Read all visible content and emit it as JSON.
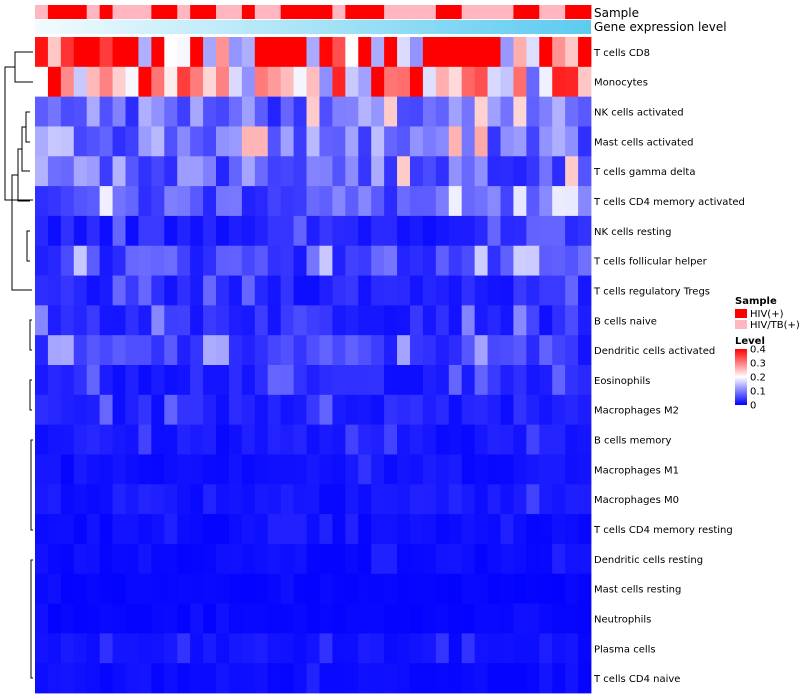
{
  "chart_data": {
    "type": "heatmap",
    "annotation_labels": {
      "sample": "Sample",
      "expression": "Gene expression level"
    },
    "n_columns": 43,
    "rows": [
      "T cells CD8",
      "Monocytes",
      "NK cells activated",
      "Mast cells activated",
      "T cells gamma delta",
      "T cells CD4 memory activated",
      "NK cells resting",
      "T cells follicular helper",
      "T cells regulatory  Tregs",
      "B cells naive",
      "Dendritic cells activated",
      "Eosinophils",
      "Macrophages M2",
      "B cells memory",
      "Macrophages M1",
      "Macrophages M0",
      "T cells CD4 memory resting",
      "Dendritic cells resting",
      "Mast cells resting",
      "Neutrophils",
      "Plasma cells",
      "T cells CD4 naive"
    ],
    "row_means": [
      0.34,
      0.27,
      0.09,
      0.1,
      0.09,
      0.07,
      0.03,
      0.06,
      0.03,
      0.04,
      0.05,
      0.03,
      0.03,
      0.02,
      0.015,
      0.02,
      0.01,
      0.01,
      0.005,
      0.005,
      0.015,
      0.01
    ],
    "sample_groups": [
      1,
      0,
      0,
      0,
      1,
      0,
      1,
      1,
      1,
      0,
      0,
      1,
      0,
      0,
      1,
      1,
      0,
      1,
      1,
      0,
      0,
      0,
      0,
      1,
      0,
      0,
      0,
      1,
      1,
      1,
      1,
      0,
      0,
      1,
      1,
      1,
      1,
      0,
      0,
      1,
      1,
      0,
      0
    ],
    "legend": {
      "sample_title": "Sample",
      "sample_entries": [
        {
          "label": "HIV(+)",
          "color": "#ff0000"
        },
        {
          "label": "HIV/TB(+)",
          "color": "#ffb6c1"
        }
      ],
      "level_title": "Level",
      "level_ticks": [
        "0.4",
        "0.3",
        "0.2",
        "0.1",
        "0"
      ],
      "level_values": [
        0.4,
        0.3,
        0.2,
        0.1,
        0.0
      ]
    },
    "color_scale": {
      "low": "#0000ff",
      "mid": "#ffffff",
      "high": "#ff0000",
      "min": 0,
      "mid_value": 0.2,
      "max": 0.4
    },
    "expression_gradient": {
      "start": "#f2fbfe",
      "end": "#5ccbf0"
    }
  }
}
